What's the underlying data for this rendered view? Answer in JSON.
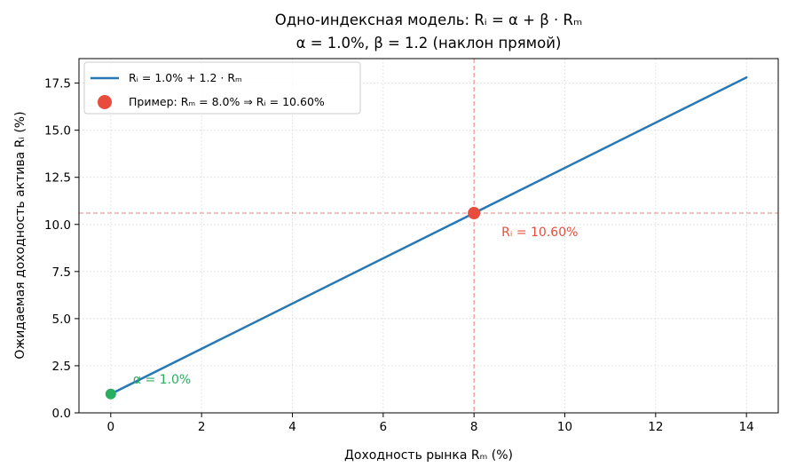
{
  "chart_data": {
    "type": "line",
    "title": "Одно-индексная модель: Rᵢ = α + β · Rₘ",
    "subtitle": "α = 1.0%, β = 1.2 (наклон прямой)",
    "xlabel": "Доходность рынка Rₘ (%)",
    "ylabel": "Ожидаемая доходность актива Rᵢ (%)",
    "xlim": [
      -0.7,
      14.7
    ],
    "ylim": [
      0,
      18.8
    ],
    "xticks": [
      0,
      2,
      4,
      6,
      8,
      10,
      12,
      14
    ],
    "xtick_labels": [
      "0",
      "2",
      "4",
      "6",
      "8",
      "10",
      "12",
      "14"
    ],
    "yticks": [
      0,
      2.5,
      5,
      7.5,
      10,
      12.5,
      15,
      17.5
    ],
    "ytick_labels": [
      "0.0",
      "2.5",
      "5.0",
      "7.5",
      "10.0",
      "12.5",
      "15.0",
      "17.5"
    ],
    "grid": true,
    "legend_position": "top-left",
    "series": [
      {
        "name": "Rᵢ = 1.0% + 1.2 · Rₘ",
        "x": [
          0,
          14
        ],
        "y": [
          1.0,
          17.8
        ],
        "color": "#2878b5"
      }
    ],
    "points": [
      {
        "name": "Пример: Rₘ = 8.0% ⇒ Rᵢ = 10.60%",
        "x": 8.0,
        "y": 10.6,
        "color": "#e74c3c",
        "label": "Rᵢ = 10.60%"
      },
      {
        "x": 0,
        "y": 1.0,
        "color": "#27ae60",
        "label": "α = 1.0%"
      }
    ],
    "reference_lines": [
      {
        "orientation": "vertical",
        "x": 8.0,
        "color": "#f08080"
      },
      {
        "orientation": "horizontal",
        "y": 10.6,
        "color": "#f08080"
      }
    ]
  }
}
